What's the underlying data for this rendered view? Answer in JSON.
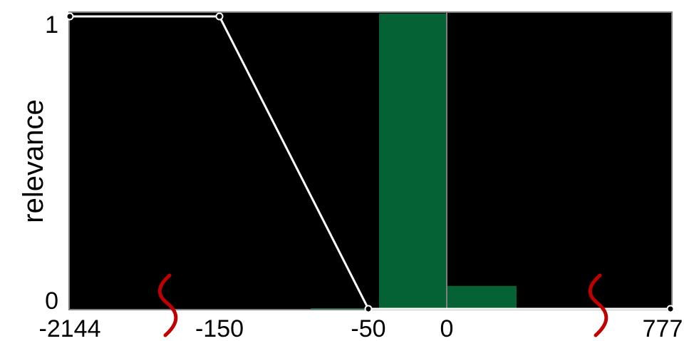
{
  "chart_data": {
    "type": "bar",
    "ylabel": "relevance",
    "ylim": [
      0,
      1
    ],
    "y_ticks": [
      "0",
      "1"
    ],
    "x_ticks": [
      "-2144",
      "-150",
      "-50",
      "0",
      "777"
    ],
    "axis_breaks": [
      {
        "between": [
          "-2144",
          "-150"
        ]
      },
      {
        "between": [
          "0",
          "777"
        ]
      }
    ],
    "bins": [
      {
        "range": [
          -100,
          -50
        ],
        "value": 0.005
      },
      {
        "range": [
          -50,
          0
        ],
        "value": 1.0
      },
      {
        "range": [
          0,
          50
        ],
        "value": 0.08
      }
    ],
    "relevance_curve": [
      {
        "x": "-2144",
        "y": 1
      },
      {
        "x": "-150",
        "y": 1
      },
      {
        "x": "-50",
        "y": 0
      },
      {
        "x": "777",
        "y": 0
      }
    ],
    "zero_line": "0",
    "colors": {
      "plot_background": "#000000",
      "bar": "#056235",
      "curve": "#ffffff",
      "zero_line": "#808080",
      "axis_break": "#c00000",
      "frame": "#808080"
    }
  }
}
